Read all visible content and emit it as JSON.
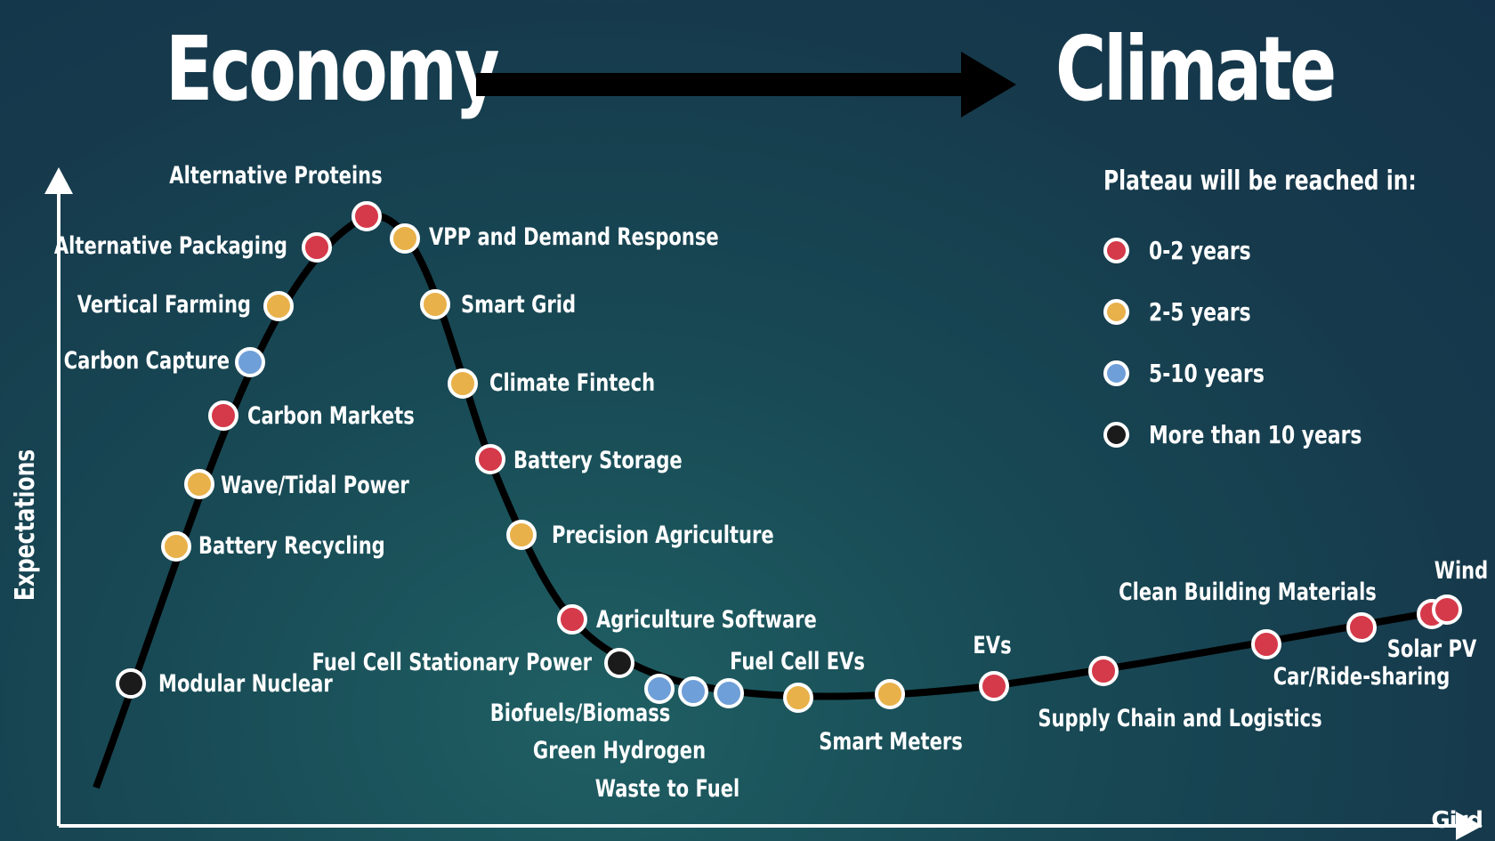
{
  "header": {
    "left": "Economy",
    "right": "Climate"
  },
  "legend": {
    "title": "Plateau will be reached in:",
    "items": [
      {
        "key": "r",
        "label": "0-2 years",
        "color": "#d53a4a"
      },
      {
        "key": "y",
        "label": "2-5 years",
        "color": "#e8b14a"
      },
      {
        "key": "b",
        "label": "5-10 years",
        "color": "#6f9fd8"
      },
      {
        "key": "k",
        "label": "More than 10 years",
        "color": "#1b1b1b"
      }
    ]
  },
  "logo": "Gird",
  "chart_data": {
    "type": "scatter",
    "ylabel": "Expectations",
    "xlabel": "",
    "points": [
      {
        "name": "Modular Nuclear",
        "category": "More than 10 years",
        "key": "k"
      },
      {
        "name": "Battery Recycling",
        "category": "2-5 years",
        "key": "y"
      },
      {
        "name": "Wave/Tidal Power",
        "category": "2-5 years",
        "key": "y"
      },
      {
        "name": "Carbon Markets",
        "category": "0-2 years",
        "key": "r"
      },
      {
        "name": "Carbon Capture",
        "category": "5-10 years",
        "key": "b"
      },
      {
        "name": "Vertical Farming",
        "category": "2-5 years",
        "key": "y"
      },
      {
        "name": "Alternative Packaging",
        "category": "0-2 years",
        "key": "r"
      },
      {
        "name": "Alternative Proteins",
        "category": "0-2 years",
        "key": "r"
      },
      {
        "name": "VPP and Demand Response",
        "category": "2-5 years",
        "key": "y"
      },
      {
        "name": "Smart Grid",
        "category": "2-5 years",
        "key": "y"
      },
      {
        "name": "Climate Fintech",
        "category": "2-5 years",
        "key": "y"
      },
      {
        "name": "Battery Storage",
        "category": "0-2 years",
        "key": "r"
      },
      {
        "name": "Precision Agriculture",
        "category": "2-5 years",
        "key": "y"
      },
      {
        "name": "Agriculture Software",
        "category": "0-2 years",
        "key": "r"
      },
      {
        "name": "Fuel Cell Stationary Power",
        "category": "More than 10 years",
        "key": "k"
      },
      {
        "name": "Biofuels/Biomass",
        "category": "5-10 years",
        "key": "b"
      },
      {
        "name": "Green Hydrogen",
        "category": "5-10 years",
        "key": "b"
      },
      {
        "name": "Waste to Fuel",
        "category": "5-10 years",
        "key": "b"
      },
      {
        "name": "Fuel Cell EVs",
        "category": "2-5 years",
        "key": "y"
      },
      {
        "name": "Smart Meters",
        "category": "2-5 years",
        "key": "y"
      },
      {
        "name": "EVs",
        "category": "0-2 years",
        "key": "r"
      },
      {
        "name": "Supply Chain and Logistics",
        "category": "0-2 years",
        "key": "r"
      },
      {
        "name": "Clean Building Materials",
        "category": "0-2 years",
        "key": "r"
      },
      {
        "name": "Car/Ride-sharing",
        "category": "0-2 years",
        "key": "r"
      },
      {
        "name": "Solar PV",
        "category": "0-2 years",
        "key": "r"
      },
      {
        "name": "Wind",
        "category": "0-2 years",
        "key": "r"
      }
    ]
  }
}
